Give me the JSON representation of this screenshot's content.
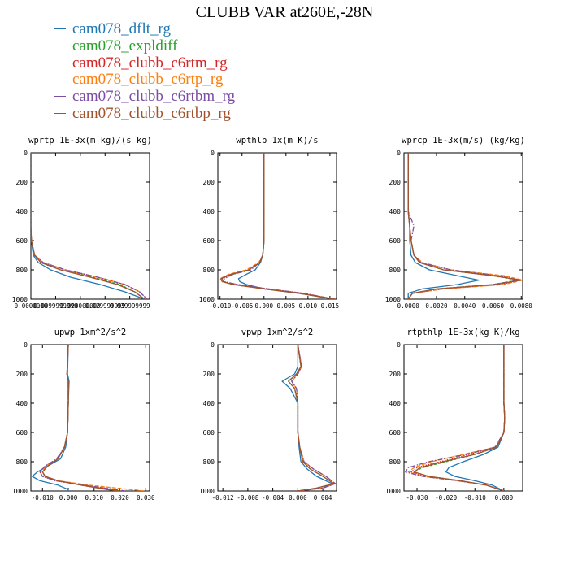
{
  "title": "CLUBB VAR at260E,-28N",
  "legend": [
    {
      "label": "cam078_dflt_rg",
      "color": "#1f77b4",
      "dash": ""
    },
    {
      "label": "cam078_expldiff",
      "color": "#2ca02c",
      "dash": "3,2"
    },
    {
      "label": "cam078_clubb_c6rtm_rg",
      "color": "#d62728",
      "dash": "1.5,1.5"
    },
    {
      "label": "cam078_clubb_c6rtp_rg",
      "color": "#ff7f0e",
      "dash": "5,2"
    },
    {
      "label": "cam078_clubb_c6rtbm_rg",
      "color": "#7b4ea3",
      "dash": "6,2,1.5,2"
    },
    {
      "label": "cam078_clubb_c6rtbp_rg",
      "color": "#a0522d",
      "dash": ""
    }
  ],
  "chart_data": [
    {
      "type": "line",
      "title": "wprtp  1E-3x(m kg)/(s kg)",
      "ylim": [
        0,
        1000
      ],
      "y_ticks": [
        0,
        200,
        400,
        600,
        800,
        1000
      ],
      "xlim": [
        0.0,
        0.048
      ],
      "x_ticks": [
        0.0,
        0.01,
        0.02,
        0.03,
        0.04
      ],
      "x_tick_labels": [
        "0.0000000",
        "0.0099999990",
        "0.020000000",
        "0.029999999",
        "0.039999999"
      ],
      "y": [
        0,
        100,
        200,
        300,
        400,
        500,
        600,
        700,
        750,
        800,
        850,
        900,
        950,
        1000
      ],
      "series": [
        {
          "values": [
            0,
            0,
            0,
            0,
            0,
            0,
            0.0002,
            0.001,
            0.003,
            0.008,
            0.016,
            0.028,
            0.038,
            0.046
          ]
        },
        {
          "values": [
            0,
            0,
            0,
            0,
            0,
            0,
            0.0002,
            0.0015,
            0.004,
            0.012,
            0.025,
            0.036,
            0.042,
            0.046
          ]
        },
        {
          "values": [
            0,
            0,
            0,
            0,
            0,
            0,
            0.0002,
            0.0015,
            0.005,
            0.014,
            0.027,
            0.038,
            0.044,
            0.047
          ]
        },
        {
          "values": [
            0,
            0,
            0,
            0,
            0,
            0,
            0.0002,
            0.0015,
            0.005,
            0.014,
            0.027,
            0.038,
            0.044,
            0.047
          ]
        },
        {
          "values": [
            0,
            0,
            0,
            0,
            0,
            0,
            0.0002,
            0.0015,
            0.005,
            0.014,
            0.027,
            0.038,
            0.044,
            0.047
          ]
        },
        {
          "values": [
            0,
            0,
            0,
            0,
            0,
            0,
            0.0002,
            0.0015,
            0.004,
            0.012,
            0.024,
            0.035,
            0.042,
            0.046
          ]
        }
      ]
    },
    {
      "type": "line",
      "title": "wpthlp  1x(m K)/s",
      "ylim": [
        0,
        1000
      ],
      "y_ticks": [
        0,
        200,
        400,
        600,
        800,
        1000
      ],
      "xlim": [
        -0.0105,
        0.0165
      ],
      "x_ticks": [
        -0.01,
        -0.005,
        0.0,
        0.005,
        0.01,
        0.015
      ],
      "x_tick_labels": [
        "-0.010",
        "-0.005",
        "0.000",
        "0.005",
        "0.010",
        "0.015"
      ],
      "y": [
        0,
        200,
        400,
        600,
        700,
        750,
        800,
        830,
        860,
        880,
        900,
        930,
        960,
        1000
      ],
      "series": [
        {
          "values": [
            0,
            0,
            0,
            0,
            -0.0003,
            -0.0008,
            -0.002,
            -0.004,
            -0.0058,
            -0.0055,
            -0.004,
            0.0,
            0.008,
            0.016
          ]
        },
        {
          "values": [
            0,
            0,
            0,
            0,
            -0.0003,
            -0.001,
            -0.0035,
            -0.007,
            -0.0098,
            -0.0095,
            -0.007,
            0.0,
            0.008,
            0.016
          ]
        },
        {
          "values": [
            0,
            0,
            0,
            0,
            -0.0003,
            -0.001,
            -0.0035,
            -0.0075,
            -0.0095,
            -0.0092,
            -0.006,
            0.001,
            0.009,
            0.016
          ]
        },
        {
          "values": [
            0,
            0,
            0,
            0,
            -0.0003,
            -0.0012,
            -0.004,
            -0.008,
            -0.01,
            -0.0095,
            -0.007,
            0.0,
            0.009,
            0.016
          ]
        },
        {
          "values": [
            0,
            0,
            0,
            0,
            -0.0003,
            -0.001,
            -0.003,
            -0.007,
            -0.009,
            -0.0092,
            -0.006,
            0.001,
            0.009,
            0.016
          ]
        },
        {
          "values": [
            0,
            0,
            0,
            0,
            -0.0003,
            -0.001,
            -0.0035,
            -0.0075,
            -0.0098,
            -0.0095,
            -0.007,
            0.0,
            0.008,
            0.016
          ]
        }
      ]
    },
    {
      "type": "line",
      "title": "wprcp  1E-3x(m/s) (kg/kg)",
      "ylim": [
        0,
        1000
      ],
      "y_ticks": [
        0,
        200,
        400,
        600,
        800,
        1000
      ],
      "xlim": [
        -0.0003,
        0.0081
      ],
      "x_ticks": [
        0.0,
        0.002,
        0.004,
        0.006,
        0.008
      ],
      "x_tick_labels": [
        "0.0000",
        "0.0020",
        "0.0040",
        "0.0060",
        "0.0080"
      ],
      "y": [
        0,
        200,
        400,
        500,
        600,
        700,
        750,
        800,
        840,
        870,
        900,
        930,
        960,
        1000
      ],
      "series": [
        {
          "values": [
            0,
            0,
            0,
            0.0001,
            0.0001,
            0.0002,
            0.0005,
            0.0015,
            0.0035,
            0.005,
            0.0035,
            0.001,
            0.0,
            0.0
          ]
        },
        {
          "values": [
            0,
            0,
            0,
            0.0001,
            0.0002,
            0.0004,
            0.0008,
            0.0025,
            0.006,
            0.0078,
            0.006,
            0.002,
            0.0003,
            0.0
          ]
        },
        {
          "values": [
            0,
            0,
            0,
            0.0001,
            0.0002,
            0.0004,
            0.0009,
            0.003,
            0.0065,
            0.008,
            0.0065,
            0.0025,
            0.0003,
            0.0
          ]
        },
        {
          "values": [
            0,
            0,
            0,
            0.0001,
            0.0002,
            0.0004,
            0.001,
            0.003,
            0.0068,
            0.0081,
            0.0068,
            0.0025,
            0.0003,
            0.0
          ]
        },
        {
          "values": [
            0,
            0,
            0,
            0.0004,
            0.0002,
            0.0004,
            0.0009,
            0.003,
            0.0062,
            0.0078,
            0.006,
            0.002,
            0.0003,
            0.0
          ]
        },
        {
          "values": [
            0,
            0,
            0,
            0.0001,
            0.0002,
            0.0004,
            0.0008,
            0.0025,
            0.006,
            0.008,
            0.0062,
            0.002,
            0.0003,
            0.0
          ]
        }
      ]
    },
    {
      "type": "line",
      "title": "upwp  1xm^2/s^2",
      "ylim": [
        0,
        1000
      ],
      "y_ticks": [
        0,
        200,
        400,
        600,
        800,
        1000
      ],
      "xlim": [
        -0.0145,
        0.0315
      ],
      "x_ticks": [
        -0.01,
        0.0,
        0.01,
        0.02,
        0.03
      ],
      "x_tick_labels": [
        "-0.010",
        "0.000",
        "0.010",
        "0.020",
        "0.030"
      ],
      "y": [
        0,
        200,
        250,
        400,
        600,
        700,
        780,
        830,
        870,
        900,
        930,
        960,
        990,
        1000
      ],
      "series": [
        {
          "values": [
            0,
            -0.0003,
            0.0003,
            0,
            -0.0003,
            -0.001,
            -0.003,
            -0.008,
            -0.012,
            -0.014,
            -0.011,
            -0.004,
            0.0,
            0.0
          ]
        },
        {
          "values": [
            0,
            -0.0005,
            0.0,
            0,
            -0.0003,
            -0.0015,
            -0.004,
            -0.008,
            -0.01,
            -0.009,
            -0.004,
            0.005,
            0.015,
            0.02
          ]
        },
        {
          "values": [
            0,
            -0.0005,
            0.0,
            0,
            -0.0003,
            -0.0015,
            -0.004,
            -0.009,
            -0.011,
            -0.01,
            -0.005,
            0.006,
            0.018,
            0.022
          ]
        },
        {
          "values": [
            0,
            -0.0005,
            0.0,
            0,
            -0.0003,
            -0.0015,
            -0.004,
            -0.009,
            -0.01,
            -0.009,
            -0.004,
            0.008,
            0.024,
            0.03
          ]
        },
        {
          "values": [
            0,
            -0.0005,
            0.0,
            0,
            -0.0003,
            -0.0015,
            -0.0045,
            -0.009,
            -0.011,
            -0.01,
            -0.005,
            0.006,
            0.018,
            0.022
          ]
        },
        {
          "values": [
            0,
            -0.0005,
            0.0,
            0,
            -0.0003,
            -0.0015,
            -0.004,
            -0.008,
            -0.01,
            -0.009,
            -0.004,
            0.005,
            0.015,
            0.02
          ]
        }
      ]
    },
    {
      "type": "line",
      "title": "vpwp  1xm^2/s^2",
      "ylim": [
        0,
        1000
      ],
      "y_ticks": [
        0,
        200,
        400,
        600,
        800,
        1000
      ],
      "xlim": [
        -0.0128,
        0.0062
      ],
      "x_ticks": [
        -0.012,
        -0.008,
        -0.004,
        0.0,
        0.004
      ],
      "x_tick_labels": [
        "-0.012",
        "-0.008",
        "-0.004",
        "0.000",
        "0.004"
      ],
      "y": [
        0,
        150,
        200,
        250,
        300,
        400,
        600,
        700,
        800,
        850,
        900,
        950,
        980,
        1000
      ],
      "series": [
        {
          "values": [
            0,
            0.0,
            -0.0005,
            -0.0025,
            -0.0012,
            0,
            0.0,
            0.0002,
            0.0005,
            0.0015,
            0.003,
            0.0055,
            0.004,
            0.0
          ]
        },
        {
          "values": [
            0,
            0.0005,
            -0.0002,
            -0.0015,
            -0.0005,
            0,
            0.0,
            0.0003,
            0.0008,
            0.002,
            0.004,
            0.0058,
            0.003,
            0.0
          ]
        },
        {
          "values": [
            0,
            0.0006,
            0.0,
            -0.001,
            -0.0002,
            0,
            0.0,
            0.0003,
            0.001,
            0.0025,
            0.0045,
            0.006,
            0.004,
            0.0
          ]
        },
        {
          "values": [
            0,
            0.0006,
            0.0,
            -0.001,
            -0.0002,
            0,
            0.0,
            0.0003,
            0.001,
            0.0025,
            0.0045,
            0.006,
            0.004,
            0.0
          ]
        },
        {
          "values": [
            0,
            0.0006,
            0.0,
            -0.001,
            -0.0002,
            0,
            0.0,
            0.0003,
            0.001,
            0.0025,
            0.0045,
            0.006,
            0.004,
            0.0
          ]
        },
        {
          "values": [
            0,
            0.0005,
            -0.0002,
            -0.0015,
            -0.0005,
            0,
            0.0,
            0.0003,
            0.0008,
            0.002,
            0.004,
            0.0058,
            0.003,
            0.0
          ]
        }
      ]
    },
    {
      "type": "line",
      "title": "rtpthlp  1E-3x(kg K)/kg",
      "ylim": [
        0,
        1000
      ],
      "y_ticks": [
        0,
        200,
        400,
        600,
        800,
        1000
      ],
      "xlim": [
        -0.0345,
        0.0065
      ],
      "x_ticks": [
        -0.03,
        -0.02,
        -0.01,
        0.0
      ],
      "x_tick_labels": [
        "-0.030",
        "-0.020",
        "-0.010",
        "0.000"
      ],
      "y": [
        0,
        200,
        400,
        500,
        600,
        700,
        750,
        800,
        840,
        870,
        900,
        930,
        960,
        1000
      ],
      "series": [
        {
          "values": [
            0,
            0,
            0,
            0.0003,
            0.0,
            -0.002,
            -0.007,
            -0.014,
            -0.019,
            -0.02,
            -0.017,
            -0.01,
            -0.004,
            0.0
          ]
        },
        {
          "values": [
            0,
            0,
            0,
            0.0003,
            0.0,
            -0.0025,
            -0.01,
            -0.02,
            -0.028,
            -0.031,
            -0.026,
            -0.015,
            -0.006,
            0.0
          ]
        },
        {
          "values": [
            0,
            0,
            0,
            0.0003,
            0.0,
            -0.003,
            -0.012,
            -0.022,
            -0.03,
            -0.032,
            -0.027,
            -0.015,
            -0.006,
            0.0
          ]
        },
        {
          "values": [
            0,
            0,
            0,
            0.0003,
            0.0,
            -0.003,
            -0.014,
            -0.025,
            -0.031,
            -0.033,
            -0.028,
            -0.016,
            -0.006,
            0.0
          ]
        },
        {
          "values": [
            0,
            0,
            0,
            0.0003,
            0.0,
            -0.003,
            -0.013,
            -0.026,
            -0.033,
            -0.034,
            -0.028,
            -0.016,
            -0.006,
            0.0
          ]
        },
        {
          "values": [
            0,
            0,
            0,
            0.0003,
            0.0,
            -0.0025,
            -0.01,
            -0.021,
            -0.029,
            -0.031,
            -0.026,
            -0.015,
            -0.006,
            0.0
          ]
        }
      ]
    }
  ]
}
